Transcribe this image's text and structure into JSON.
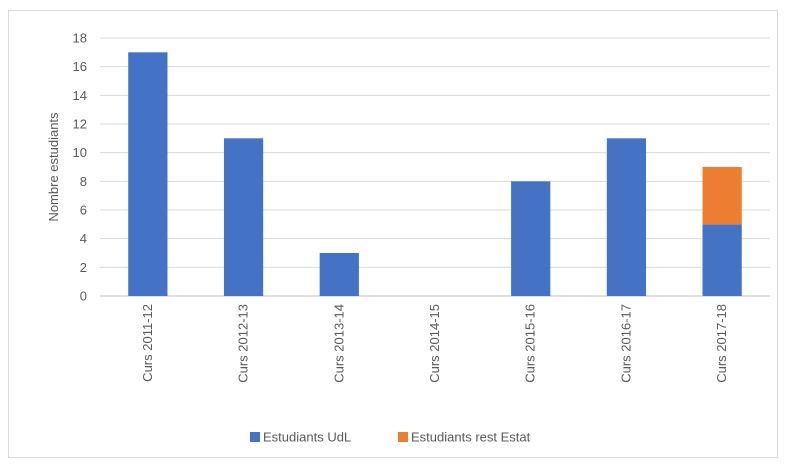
{
  "chart_data": {
    "type": "bar",
    "stacked": true,
    "title": "",
    "xlabel": "",
    "ylabel": "Nombre  estudiants",
    "ylim": [
      0,
      18
    ],
    "ytick_step": 2,
    "grid": true,
    "legend_position": "bottom",
    "categories": [
      "Curs 2011-12",
      "Curs 2012-13",
      "Curs 2013-14",
      "Curs 2014-15",
      "Curs 2015-16",
      "Curs 2016-17",
      "Curs 2017-18"
    ],
    "series": [
      {
        "name": "Estudiants UdL",
        "color": "#4472C4",
        "values": [
          17,
          11,
          3,
          0,
          8,
          11,
          5
        ]
      },
      {
        "name": "Estudiants rest Estat",
        "color": "#ED7D31",
        "values": [
          0,
          0,
          0,
          0,
          0,
          0,
          4
        ]
      }
    ]
  }
}
